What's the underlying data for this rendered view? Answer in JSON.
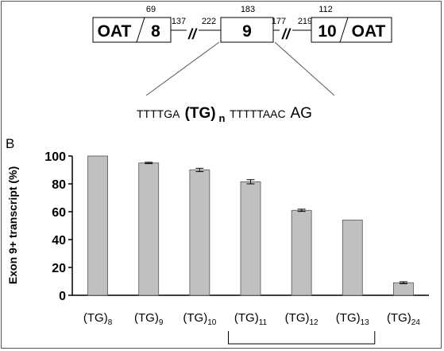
{
  "gene_diagram": {
    "exons": [
      {
        "left_text": "OAT",
        "right_text": "8",
        "top_number": "69"
      },
      {
        "left_text": "",
        "right_text": "9",
        "top_number": "183"
      },
      {
        "left_text": "10",
        "right_text": "OAT",
        "top_number": "112"
      }
    ],
    "introns": [
      {
        "left_number": "137",
        "right_number": "222",
        "break_mark": "//"
      },
      {
        "left_number": "177",
        "right_number": "219",
        "break_mark": "//"
      }
    ],
    "sequence": {
      "prefix": "TTTTGA",
      "repeat": "(TG)",
      "repeat_subscript": "n",
      "middle": "TTTTTAAC",
      "suffix": "AG"
    }
  },
  "panel_label": "B",
  "chart_data": {
    "type": "bar",
    "categories": [
      "(TG)8",
      "(TG)9",
      "(TG)10",
      "(TG)11",
      "(TG)12",
      "(TG)13",
      "(TG)24"
    ],
    "category_labels": [
      {
        "base": "(TG)",
        "sub": "8"
      },
      {
        "base": "(TG)",
        "sub": "9"
      },
      {
        "base": "(TG)",
        "sub": "10"
      },
      {
        "base": "(TG)",
        "sub": "11"
      },
      {
        "base": "(TG)",
        "sub": "12"
      },
      {
        "base": "(TG)",
        "sub": "13"
      },
      {
        "base": "(TG)",
        "sub": "24"
      }
    ],
    "values": [
      100,
      95,
      90,
      81.5,
      61,
      54,
      9
    ],
    "errors": [
      0,
      0.5,
      1.2,
      1.5,
      0.8,
      0,
      0.7
    ],
    "xlabel": "",
    "ylabel": "Exon 9+ transcript (%)",
    "ylim": [
      0,
      100
    ],
    "yticks": [
      0,
      20,
      40,
      60,
      80,
      100
    ],
    "grid": false,
    "bar_color": "#c0c0c0",
    "bracket_span": [
      "(TG)11",
      "(TG)13"
    ]
  }
}
